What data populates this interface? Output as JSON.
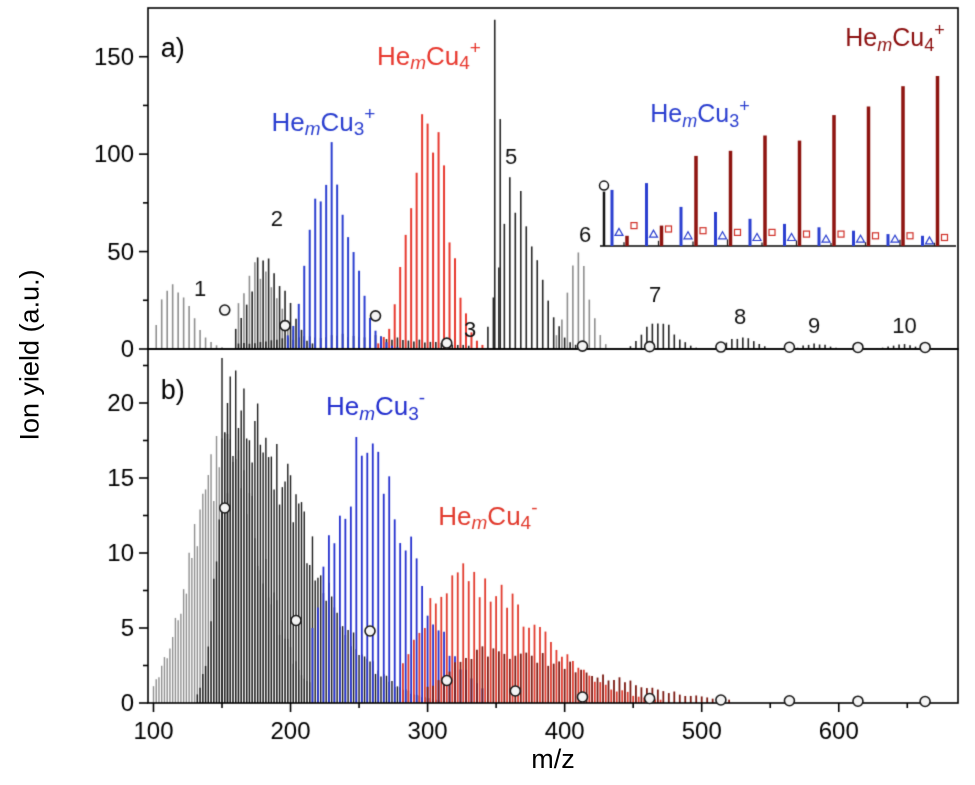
{
  "chart_data": {
    "type": "bar",
    "variant": "mass-spectrum-sticks",
    "xlabel": "m/z",
    "ylabel": "Ion yield (a.u.)",
    "xlim": [
      96,
      687
    ],
    "xticks": [
      100,
      200,
      300,
      400,
      500,
      600
    ],
    "x_minor_step": 50,
    "colors": {
      "gray": "#8f8f8f",
      "black": "#262626",
      "blue": "#2b3fd0",
      "red": "#e8392f",
      "darkred": "#7b1a12",
      "inset_red": "#8c0f0f"
    },
    "panels": [
      {
        "id": "a",
        "ylim": [
          0,
          175
        ],
        "yticks": [
          0,
          50,
          100,
          150
        ],
        "series": [
          {
            "name": "helium-cluster-background-gray",
            "color": "#8f8f8f",
            "spacing": 4,
            "lw": 1.6,
            "envelopes": [
              {
                "center": 112,
                "sl": 7,
                "sr": 14,
                "peak": 34,
                "start": 102,
                "end": 150
              },
              {
                "center": 176,
                "sl": 12,
                "sr": 16,
                "peak": 42,
                "start": 162,
                "end": 214
              },
              {
                "center": 408,
                "sl": 7,
                "sr": 9,
                "peak": 48,
                "start": 394,
                "end": 432
              }
            ]
          },
          {
            "name": "numbered-cluster-series-black",
            "color": "#262626",
            "spacing": 4,
            "lw": 1.6,
            "envelopes": [
              {
                "center": 182,
                "sl": 12,
                "sr": 14,
                "peak": 50,
                "start": 160,
                "end": 218
              },
              {
                "center": 240,
                "sl": 55,
                "sr": 55,
                "peak": 7,
                "start": 162,
                "end": 332
              },
              {
                "center": 360,
                "sl": 8,
                "sr": 18,
                "peak": 82,
                "start": 344,
                "end": 410
              },
              {
                "center": 467,
                "sl": 9,
                "sr": 12,
                "peak": 15,
                "start": 448,
                "end": 496
              },
              {
                "center": 528,
                "sl": 8,
                "sr": 10,
                "peak": 6.5,
                "start": 510,
                "end": 548
              },
              {
                "center": 582,
                "sl": 7,
                "sr": 9,
                "peak": 3,
                "start": 566,
                "end": 600
              },
              {
                "center": 645,
                "sl": 8,
                "sr": 9,
                "peak": 2.5,
                "start": 628,
                "end": 664
              }
            ],
            "spikes": [
              [
                349,
                169
              ],
              [
                353,
                118
              ]
            ]
          },
          {
            "name": "HemCu3-plus",
            "color": "#2b3fd0",
            "spacing": 4,
            "lw": 2,
            "envelopes": [
              {
                "center": 228,
                "sl": 13,
                "sr": 16,
                "peak": 102,
                "start": 198,
                "end": 280
              }
            ]
          },
          {
            "name": "HemCu4-plus",
            "color": "#e8392f",
            "spacing": 4,
            "lw": 2,
            "envelopes": [
              {
                "center": 300,
                "sl": 13,
                "sr": 14,
                "peak": 128,
                "start": 264,
                "end": 342
              }
            ]
          }
        ],
        "circle_markers": [
          [
            152,
            20
          ],
          [
            196,
            12
          ],
          [
            262,
            17
          ],
          [
            314,
            3
          ],
          [
            413,
            1.5
          ],
          [
            462,
            1.2
          ],
          [
            514,
            1.0
          ],
          [
            564,
            0.9
          ],
          [
            614,
            0.8
          ],
          [
            663,
            0.8
          ]
        ],
        "peak_numbers": [
          {
            "t": "1",
            "x": 134,
            "y": 27
          },
          {
            "t": "2",
            "x": 190,
            "y": 63
          },
          {
            "t": "3",
            "x": 331,
            "y": 6
          },
          {
            "t": "5",
            "x": 361,
            "y": 95
          },
          {
            "t": "6",
            "x": 415,
            "y": 55
          },
          {
            "t": "7",
            "x": 466,
            "y": 24
          },
          {
            "t": "8",
            "x": 528,
            "y": 13
          },
          {
            "t": "9",
            "x": 582,
            "y": 8
          },
          {
            "t": "10",
            "x": 648,
            "y": 8
          }
        ],
        "labels": [
          {
            "x": 114,
            "y": 150,
            "size": 27,
            "color": "#000000",
            "segments": [
              {
                "t": "a)"
              }
            ]
          },
          {
            "x": 224,
            "y": 112,
            "size": 26,
            "color": "#2b3fd0",
            "segments": [
              {
                "t": "He"
              },
              {
                "t": "m",
                "s": "sub",
                "i": true
              },
              {
                "t": "Cu"
              },
              {
                "t": "3",
                "s": "sub"
              },
              {
                "t": "+",
                "s": "sup"
              }
            ]
          },
          {
            "x": 301,
            "y": 146,
            "size": 26,
            "color": "#e8392f",
            "segments": [
              {
                "t": "He"
              },
              {
                "t": "m",
                "s": "sub",
                "i": true
              },
              {
                "t": "Cu"
              },
              {
                "t": "4",
                "s": "sub"
              },
              {
                "t": "+",
                "s": "sup"
              }
            ]
          }
        ],
        "inset": {
          "blue_label": {
            "color": "#2b3fd0",
            "segments": [
              {
                "t": "He"
              },
              {
                "t": "m",
                "s": "sub",
                "i": true
              },
              {
                "t": "Cu"
              },
              {
                "t": "3",
                "s": "sub"
              },
              {
                "t": "+",
                "s": "sup"
              }
            ]
          },
          "red_label": {
            "color": "#8c0f0f",
            "segments": [
              {
                "t": "He"
              },
              {
                "t": "m",
                "s": "sub",
                "i": true
              },
              {
                "t": "Cu"
              },
              {
                "t": "4",
                "s": "sub"
              },
              {
                "t": "+",
                "s": "sup"
              }
            ]
          },
          "blue_bars": [
            33,
            37,
            23,
            20,
            16,
            13,
            11,
            9,
            7,
            6
          ],
          "red_bars": [
            6,
            12,
            53,
            56,
            65,
            62,
            77,
            82,
            94,
            100
          ],
          "black_bar": 32,
          "triangle_markers": [
            8,
            7,
            6,
            6,
            5,
            5,
            4,
            4,
            4,
            3
          ],
          "square_markers": [
            12,
            10,
            9,
            8,
            8,
            7,
            7,
            6,
            6,
            5
          ]
        }
      },
      {
        "id": "b",
        "ylim": [
          0,
          23.6
        ],
        "yticks": [
          0,
          5,
          10,
          15,
          20
        ],
        "series": [
          {
            "name": "helium-cluster-background-gray",
            "color": "#8f8f8f",
            "spacing": 2,
            "lw": 1.4,
            "envelopes": [
              {
                "center": 150,
                "sl": 22,
                "sr": 28,
                "peak": 17,
                "start": 100,
                "end": 215
              }
            ]
          },
          {
            "name": "cluster-series-black",
            "color": "#1c1c1c",
            "spacing": 2,
            "lw": 1.4,
            "envelopes": [
              {
                "center": 158,
                "sl": 10,
                "sr": 50,
                "peak": 20,
                "start": 132,
                "end": 322
              }
            ],
            "spikes": [
              [
                150,
                23
              ],
              [
                154,
                20
              ]
            ]
          },
          {
            "name": "HemCu3-minus",
            "color": "#2430cf",
            "spacing": 4,
            "lw": 1.8,
            "envelopes": [
              {
                "center": 250,
                "sl": 22,
                "sr": 38,
                "peak": 16.5,
                "start": 216,
                "end": 342
              }
            ]
          },
          {
            "name": "HemCu4-minus",
            "color": "#e23b2e",
            "spacing": 4,
            "lw": 1.8,
            "envelopes": [
              {
                "center": 322,
                "sl": 26,
                "sr": 55,
                "peak": 8.5,
                "start": 282,
                "end": 470
              }
            ]
          },
          {
            "name": "overlap-tail-darkred",
            "color": "#7b1a12",
            "spacing": 4,
            "lw": 1.8,
            "envelopes": [
              {
                "center": 345,
                "sl": 30,
                "sr": 75,
                "peak": 3.5,
                "start": 300,
                "end": 520
              }
            ]
          }
        ],
        "circle_markers": [
          [
            152,
            13
          ],
          [
            204,
            5.5
          ],
          [
            258,
            4.8
          ],
          [
            314,
            1.5
          ],
          [
            364,
            0.8
          ],
          [
            413,
            0.4
          ],
          [
            462,
            0.3
          ],
          [
            514,
            0.2
          ],
          [
            564,
            0.15
          ],
          [
            614,
            0.12
          ],
          [
            663,
            0.1
          ]
        ],
        "peak_numbers": [],
        "labels": [
          {
            "x": 114,
            "y": 20.3,
            "size": 27,
            "color": "#000000",
            "segments": [
              {
                "t": "b)"
              }
            ]
          },
          {
            "x": 262,
            "y": 19.2,
            "size": 26,
            "color": "#2430cf",
            "segments": [
              {
                "t": "He"
              },
              {
                "t": "m",
                "s": "sub",
                "i": true
              },
              {
                "t": "Cu"
              },
              {
                "t": "3",
                "s": "sub"
              },
              {
                "t": "-",
                "s": "sup"
              }
            ]
          },
          {
            "x": 344,
            "y": 11.9,
            "size": 26,
            "color": "#e23b2e",
            "segments": [
              {
                "t": "He"
              },
              {
                "t": "m",
                "s": "sub",
                "i": true
              },
              {
                "t": "Cu"
              },
              {
                "t": "4",
                "s": "sub"
              },
              {
                "t": "-",
                "s": "sup"
              }
            ]
          }
        ]
      }
    ]
  }
}
